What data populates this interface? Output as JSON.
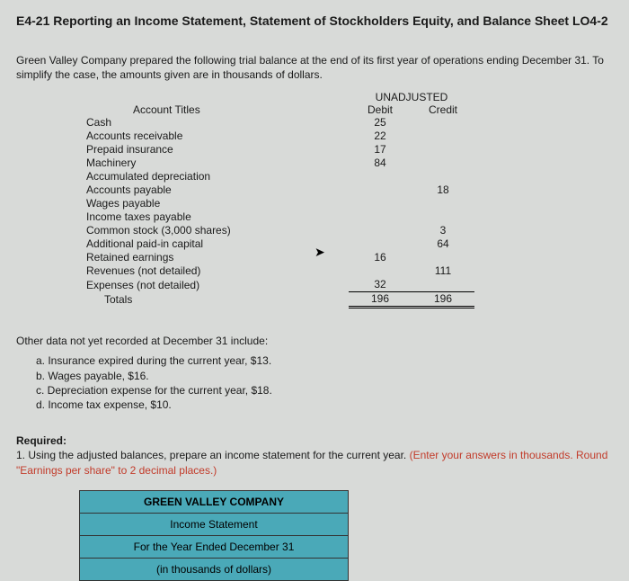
{
  "title": "E4-21 Reporting an Income Statement, Statement of Stockholders Equity, and Balance Sheet LO4-2",
  "intro": "Green Valley Company prepared the following trial balance at the end of its first year of operations ending December 31. To simplify the case, the amounts given are in thousands of dollars.",
  "trial_balance": {
    "header_group": "UNADJUSTED",
    "col_acct": "Account Titles",
    "col_debit": "Debit",
    "col_credit": "Credit",
    "rows": [
      {
        "title": "Cash",
        "debit": "25",
        "credit": ""
      },
      {
        "title": "Accounts receivable",
        "debit": "22",
        "credit": ""
      },
      {
        "title": "Prepaid insurance",
        "debit": "17",
        "credit": ""
      },
      {
        "title": "Machinery",
        "debit": "84",
        "credit": ""
      },
      {
        "title": "Accumulated depreciation",
        "debit": "",
        "credit": ""
      },
      {
        "title": "Accounts payable",
        "debit": "",
        "credit": "18"
      },
      {
        "title": "Wages payable",
        "debit": "",
        "credit": ""
      },
      {
        "title": "Income taxes payable",
        "debit": "",
        "credit": ""
      },
      {
        "title": "Common stock (3,000 shares)",
        "debit": "",
        "credit": "3"
      },
      {
        "title": "Additional paid-in capital",
        "debit": "",
        "credit": "64"
      },
      {
        "title": "Retained earnings",
        "debit": "16",
        "credit": ""
      },
      {
        "title": "Revenues (not detailed)",
        "debit": "",
        "credit": "111"
      },
      {
        "title": "Expenses (not detailed)",
        "debit": "32",
        "credit": ""
      }
    ],
    "totals_label": "Totals",
    "totals_debit": "196",
    "totals_credit": "196"
  },
  "other_intro": "Other data not yet recorded at December 31 include:",
  "other": {
    "a": "a. Insurance expired during the current year, $13.",
    "b": "b. Wages payable, $16.",
    "c": "c. Depreciation expense for the current year, $18.",
    "d": "d. Income tax expense, $10."
  },
  "req": {
    "label": "Required:",
    "text": "1. Using the adjusted balances, prepare an income statement for the current year. ",
    "note": "(Enter your answers in thousands. Round \"Earnings per share\" to 2 decimal places.)"
  },
  "stmt": {
    "company": "GREEN VALLEY COMPANY",
    "title": "Income Statement",
    "period": "For the Year Ended December 31",
    "units": "(in thousands of dollars)"
  },
  "colors": {
    "page_bg": "#d8dad8",
    "text": "#1a1a1a",
    "note_red": "#c23b2a",
    "box_fill": "#4aa9b8",
    "box_border": "#333333"
  }
}
